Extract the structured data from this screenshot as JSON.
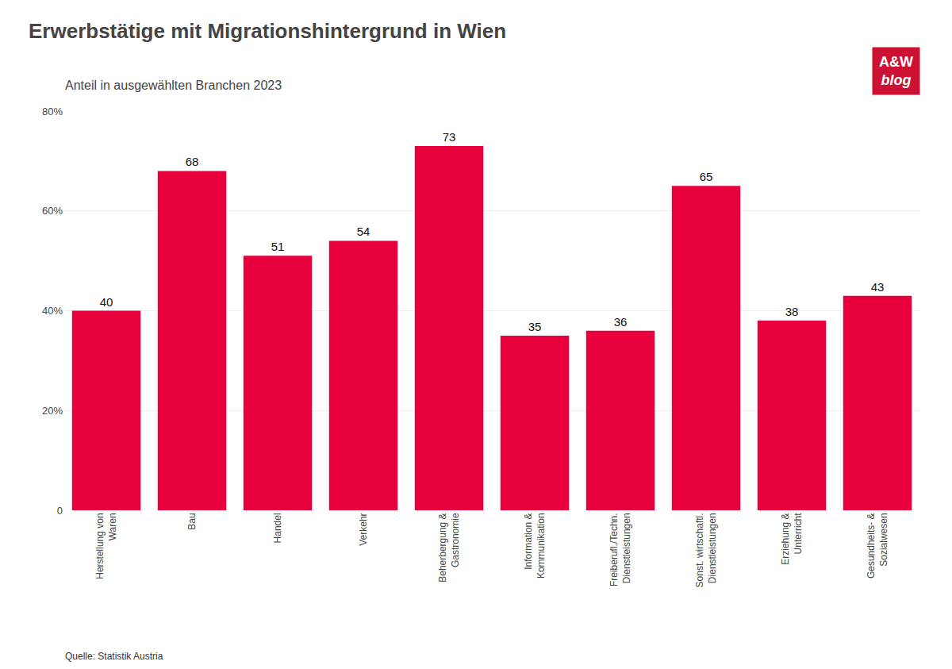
{
  "chart_data": {
    "type": "bar",
    "title": "Erwerbstätige mit Migrationshintergrund in Wien",
    "subtitle": "Anteil in ausgewählten Branchen 2023",
    "categories": [
      "Herstellung von\nWaren",
      "Bau",
      "Handel",
      "Verkehr",
      "Beherbergung &\nGastronomie",
      "Information &\nKommunikation",
      "Freiberufl./Techn.\nDienstleistungen",
      "Sonst. wirtschaftl.\nDienstleistungen",
      "Erziehung &\nUnterricht",
      "Gesundheits- &\nSozialwesen"
    ],
    "values": [
      40,
      68,
      51,
      54,
      73,
      35,
      36,
      65,
      38,
      43
    ],
    "color": "#E8003D",
    "ylim": [
      0,
      80
    ],
    "yticks": [
      0,
      {
        "value": 20,
        "label": "20%"
      },
      {
        "value": 40,
        "label": "40%"
      },
      {
        "value": 60,
        "label": "60%"
      },
      {
        "value": 80,
        "label": "80%"
      }
    ],
    "grid": true,
    "data_labels": true,
    "annotations": [
      "Quelle: Statistik Austria",
      "A&W",
      "blog"
    ]
  }
}
